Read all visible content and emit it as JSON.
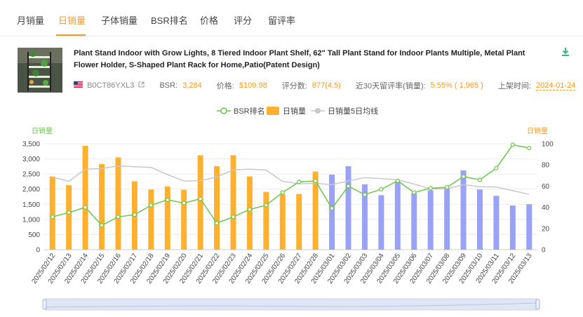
{
  "tabs": [
    "月销量",
    "日销量",
    "子体销量",
    "BSR排名",
    "价格",
    "评分",
    "留评率"
  ],
  "active_tab": "日销量",
  "product": {
    "title": "Plant Stand Indoor with Grow Lights, 8 Tiered Indoor Plant Shelf, 62\" Tall Plant Stand for Indoor Plants Multiple, Metal Plant Flower Holder, S-Shaped Plant Rack for Home,Patio(Patent Design)",
    "asin": "B0CT86YXL3",
    "bsr_label": "BSR:",
    "bsr_value": "3,284",
    "price_label": "价格:",
    "price_value": "$109.98",
    "rating_label": "评分数:",
    "rating_value": "877(4.5)",
    "review_rate_label": "近30天留评率(销量):",
    "review_rate_value": "5.55% ( 1,965 )",
    "listed_label": "上架时间:",
    "listed_value": "2024-01-24",
    "flag_icon": "us-flag-icon",
    "download_icon": "download-icon"
  },
  "colors": {
    "accent": "#f59a23",
    "bar_actual": "#ffb02e",
    "bar_estimated": "#9aa2f5",
    "bsr_line": "#6cc64a",
    "avg_line": "#c8c8c8"
  },
  "chart_data": {
    "type": "bar",
    "legend": [
      "BSR排名",
      "日销量",
      "日销量5日均线"
    ],
    "legend_placement": "top-center",
    "y_left_title": "日销量",
    "y_right_title": "日销量",
    "y_left_ticks": [
      "0",
      "500",
      "1,000",
      "1,500",
      "2,000",
      "2,500",
      "3,000",
      "3,500"
    ],
    "y_right_ticks": [
      "0",
      "20",
      "40",
      "60",
      "80",
      "100"
    ],
    "ylim_left": [
      0,
      3500
    ],
    "ylim_right": [
      0,
      100
    ],
    "categories": [
      "2025/02/12",
      "2025/02/13",
      "2025/02/14",
      "2025/02/15",
      "2025/02/16",
      "2025/02/17",
      "2025/02/18",
      "2025/02/19",
      "2025/02/20",
      "2025/02/21",
      "2025/02/22",
      "2025/02/23",
      "2025/02/24",
      "2025/02/25",
      "2025/02/26",
      "2025/02/27",
      "2025/02/28",
      "2025/03/01",
      "2025/03/02",
      "2025/03/03",
      "2025/03/04",
      "2025/03/05",
      "2025/03/06",
      "2025/03/07",
      "2025/03/08",
      "2025/03/09",
      "2025/03/10",
      "2025/03/11",
      "2025/03/12",
      "2025/03/13"
    ],
    "series": [
      {
        "name": "日销量",
        "axis": "left",
        "type": "bar",
        "values": [
          2420,
          2130,
          3430,
          2830,
          3050,
          2260,
          1990,
          2090,
          1980,
          3120,
          2760,
          3120,
          2420,
          1910,
          1830,
          1840,
          2580,
          2480,
          2760,
          2160,
          1800,
          2260,
          1870,
          1960,
          2050,
          2620,
          1990,
          1780,
          1460,
          1500
        ],
        "estimated_from_index": 17
      },
      {
        "name": "BSR排名",
        "axis": "right",
        "type": "line",
        "values": [
          31,
          35,
          40,
          23,
          31,
          33,
          42,
          47,
          44,
          48,
          25,
          31,
          38,
          42,
          54,
          64,
          65,
          39,
          60,
          52,
          57,
          65,
          54,
          58,
          59,
          69,
          66,
          77,
          99,
          96
        ]
      },
      {
        "name": "日销量5日均线",
        "axis": "left",
        "type": "line",
        "values": [
          2400,
          2260,
          2660,
          2680,
          2770,
          2740,
          2720,
          2480,
          2270,
          2280,
          2400,
          2640,
          2660,
          2630,
          2260,
          2180,
          2190,
          2150,
          2270,
          2380,
          2350,
          2310,
          2170,
          2010,
          2010,
          2150,
          2080,
          2070,
          1950,
          1830
        ]
      }
    ]
  }
}
